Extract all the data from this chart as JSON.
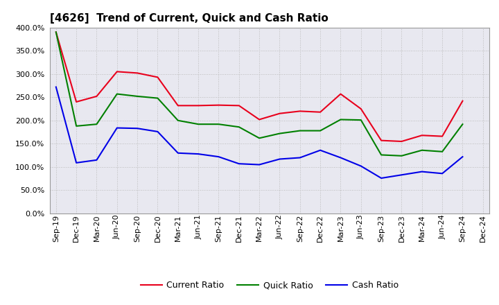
{
  "title": "[4626]  Trend of Current, Quick and Cash Ratio",
  "labels": [
    "Sep-19",
    "Dec-19",
    "Mar-20",
    "Jun-20",
    "Sep-20",
    "Dec-20",
    "Mar-21",
    "Jun-21",
    "Sep-21",
    "Dec-21",
    "Mar-22",
    "Jun-22",
    "Sep-22",
    "Dec-22",
    "Mar-23",
    "Jun-23",
    "Sep-23",
    "Dec-23",
    "Mar-24",
    "Jun-24",
    "Sep-24",
    "Dec-24"
  ],
  "current_ratio": [
    390,
    240,
    252,
    305,
    302,
    293,
    232,
    232,
    233,
    232,
    202,
    215,
    220,
    218,
    257,
    225,
    157,
    155,
    168,
    166,
    242,
    null
  ],
  "quick_ratio": [
    390,
    188,
    192,
    257,
    252,
    248,
    200,
    192,
    192,
    186,
    162,
    172,
    178,
    178,
    202,
    201,
    126,
    124,
    136,
    133,
    192,
    null
  ],
  "cash_ratio": [
    272,
    109,
    115,
    184,
    183,
    176,
    130,
    128,
    122,
    107,
    105,
    117,
    120,
    136,
    120,
    102,
    76,
    83,
    90,
    86,
    122,
    null
  ],
  "current_color": "#e8001c",
  "quick_color": "#008000",
  "cash_color": "#0000e8",
  "ylim": [
    0,
    400
  ],
  "yticks": [
    0,
    50,
    100,
    150,
    200,
    250,
    300,
    350,
    400
  ],
  "background_color": "#ffffff",
  "plot_bg_color": "#e8e8f0",
  "grid_color": "#bbbbbb",
  "linewidth": 1.5,
  "title_fontsize": 11,
  "tick_fontsize": 8,
  "legend_fontsize": 9
}
